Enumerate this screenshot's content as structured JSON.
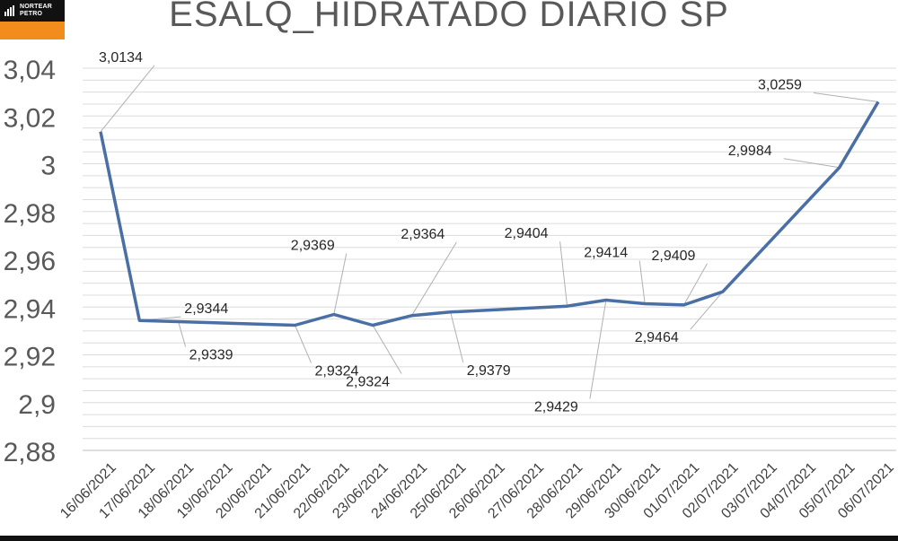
{
  "logo": {
    "line1": "NORTEAR",
    "line2": "PETRO"
  },
  "chart_data": {
    "type": "line",
    "title": "ESALQ_HIDRATADO DIARIO SP",
    "categories": [
      "16/06/2021",
      "17/06/2021",
      "18/06/2021",
      "19/06/2021",
      "20/06/2021",
      "21/06/2021",
      "22/06/2021",
      "23/06/2021",
      "24/06/2021",
      "25/06/2021",
      "26/06/2021",
      "27/06/2021",
      "28/06/2021",
      "29/06/2021",
      "30/06/2021",
      "01/07/2021",
      "02/07/2021",
      "03/07/2021",
      "04/07/2021",
      "05/07/2021",
      "06/07/2021"
    ],
    "series": [
      {
        "values": [
          3.0134,
          2.9344,
          2.9339,
          null,
          null,
          2.9324,
          2.9369,
          2.9324,
          2.9364,
          2.9379,
          null,
          null,
          2.9404,
          2.9429,
          2.9414,
          2.9409,
          2.9464,
          null,
          null,
          2.9984,
          3.0259
        ],
        "color": "#4a6fa5"
      }
    ],
    "data_labels": [
      "3,0134",
      "2,9344",
      "2,9339",
      null,
      null,
      "2,9324",
      "2,9369",
      "2,9324",
      "2,9364",
      "2,9379",
      null,
      null,
      "2,9404",
      "2,9429",
      "2,9414",
      "2,9409",
      "2,9464",
      null,
      null,
      "2,9984",
      "3,0259"
    ],
    "y_ticks": [
      "2,88",
      "2,9",
      "2,92",
      "2,94",
      "2,96",
      "2,98",
      "3",
      "3,02",
      "3,04"
    ],
    "ylim": [
      2.88,
      3.04
    ],
    "grid": true,
    "xlabel": "",
    "ylabel": ""
  }
}
